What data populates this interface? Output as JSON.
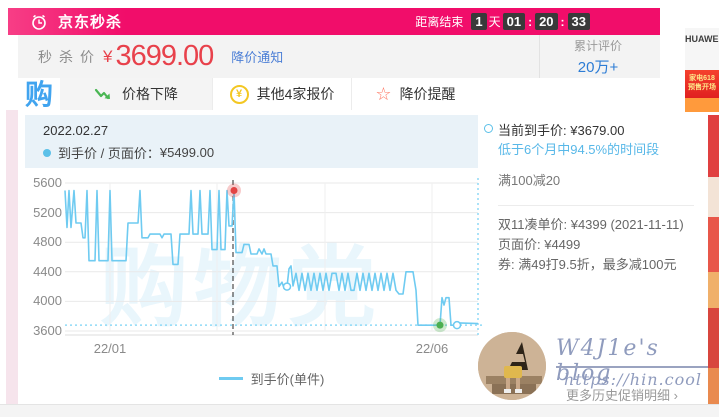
{
  "banner": {
    "title": "京东秒杀",
    "countdown_label": "距离结束",
    "days": "1",
    "day_unit": "天",
    "hours": "01",
    "minutes": "20",
    "seconds": "33",
    "colon": ":",
    "bg_color": "#f10d6a"
  },
  "price_bar": {
    "label": "秒杀价",
    "currency": "¥",
    "price": "3699.00",
    "notice_link": "降价通知",
    "review_label": "累计评价",
    "review_count": "20万+",
    "price_color": "#e8414b"
  },
  "side_product": {
    "brand": "HUAWEI",
    "promo_line1": "家电618",
    "promo_line2": "预售开场"
  },
  "toolbar": {
    "logo": "购",
    "tabs": [
      {
        "label": "价格下降",
        "icon": "trend-down-icon"
      },
      {
        "label": "其他4家报价",
        "icon": "yen-circle-icon",
        "yen": "¥"
      },
      {
        "label": "降价提醒",
        "icon": "star-icon",
        "star": "☆"
      }
    ]
  },
  "tooltip": {
    "date": "2022.02.27",
    "label": "到手价 / 页面价",
    "separator": "：",
    "value": "¥5499.00",
    "dot_color": "#5bc0e8"
  },
  "info_panel": {
    "current_label": "当前到手价:",
    "current_value": "¥3679.00",
    "hint": "低于6个月中94.5%的时间段",
    "hint_color": "#58b8e8",
    "promo": "满100减20",
    "double11": "双11凑单价: ¥4399 (2021-11-11)",
    "page_price": "页面价: ¥4499",
    "coupon": "券: 满49打9.5折，最多减100元"
  },
  "chart_data": {
    "type": "line",
    "title": "",
    "xlabel": "",
    "ylabel": "",
    "ylim": [
      3600,
      5650
    ],
    "grid": true,
    "legend_position": "bottom",
    "watermark": "购物党",
    "y_ticks": [
      5600,
      5200,
      4800,
      4400,
      4000,
      3600
    ],
    "x_ticks": [
      {
        "label": "22/01",
        "x": 110
      },
      {
        "label": "22/06",
        "x": 432
      }
    ],
    "x_gridlines": [
      110,
      217,
      325,
      432
    ],
    "current_price_line": 3679,
    "annotation_line_x": 233,
    "series": [
      {
        "name": "到手价(单件)",
        "color": "#6fcbf1",
        "points": [
          [
            65,
            5499
          ],
          [
            67,
            5000
          ],
          [
            69,
            5499
          ],
          [
            71,
            5000
          ],
          [
            74,
            5499
          ],
          [
            76,
            5060
          ],
          [
            81,
            5060
          ],
          [
            83,
            4860
          ],
          [
            85,
            4860
          ],
          [
            87,
            5499
          ],
          [
            89,
            4550
          ],
          [
            95,
            4550
          ],
          [
            97,
            5499
          ],
          [
            99,
            4550
          ],
          [
            108,
            4550
          ],
          [
            110,
            5499
          ],
          [
            112,
            4550
          ],
          [
            126,
            4550
          ],
          [
            128,
            5060
          ],
          [
            138,
            5060
          ],
          [
            140,
            5499
          ],
          [
            142,
            4860
          ],
          [
            148,
            4860
          ],
          [
            150,
            4910
          ],
          [
            160,
            4910
          ],
          [
            162,
            4860
          ],
          [
            164,
            4910
          ],
          [
            171,
            4910
          ],
          [
            173,
            4500
          ],
          [
            178,
            4500
          ],
          [
            180,
            4910
          ],
          [
            189,
            4910
          ],
          [
            191,
            5499
          ],
          [
            193,
            4910
          ],
          [
            198,
            4910
          ],
          [
            200,
            5499
          ],
          [
            202,
            4910
          ],
          [
            208,
            4910
          ],
          [
            210,
            5499
          ],
          [
            212,
            4700
          ],
          [
            217,
            4700
          ],
          [
            219,
            5499
          ],
          [
            221,
            4700
          ],
          [
            225,
            4700
          ],
          [
            227,
            5499
          ],
          [
            229,
            5020
          ],
          [
            232,
            5020
          ],
          [
            234,
            5499
          ],
          [
            236,
            4660
          ],
          [
            242,
            4660
          ],
          [
            244,
            4770
          ],
          [
            249,
            4770
          ],
          [
            251,
            4640
          ],
          [
            257,
            4640
          ],
          [
            259,
            4710
          ],
          [
            262,
            4640
          ],
          [
            264,
            4710
          ],
          [
            266,
            4640
          ],
          [
            271,
            4640
          ],
          [
            273,
            4480
          ],
          [
            277,
            4480
          ],
          [
            279,
            4200
          ],
          [
            282,
            4260
          ],
          [
            284,
            4180
          ],
          [
            287,
            4200
          ],
          [
            289,
            4440
          ],
          [
            291,
            4480
          ],
          [
            293,
            4210
          ],
          [
            296,
            4380
          ],
          [
            299,
            4150
          ],
          [
            302,
            4380
          ],
          [
            305,
            4150
          ],
          [
            308,
            4380
          ],
          [
            311,
            4150
          ],
          [
            314,
            4380
          ],
          [
            317,
            4150
          ],
          [
            320,
            4380
          ],
          [
            323,
            4150
          ],
          [
            326,
            4380
          ],
          [
            329,
            4150
          ],
          [
            332,
            4380
          ],
          [
            336,
            4380
          ],
          [
            339,
            4150
          ],
          [
            342,
            4380
          ],
          [
            345,
            4150
          ],
          [
            348,
            4380
          ],
          [
            351,
            4150
          ],
          [
            354,
            4150
          ],
          [
            357,
            4380
          ],
          [
            360,
            4150
          ],
          [
            363,
            4380
          ],
          [
            366,
            4150
          ],
          [
            369,
            4380
          ],
          [
            372,
            4150
          ],
          [
            375,
            4380
          ],
          [
            378,
            4150
          ],
          [
            381,
            4380
          ],
          [
            384,
            4150
          ],
          [
            387,
            4380
          ],
          [
            390,
            4150
          ],
          [
            393,
            4380
          ],
          [
            396,
            4150
          ],
          [
            399,
            4100
          ],
          [
            403,
            4100
          ],
          [
            406,
            4400
          ],
          [
            413,
            4400
          ],
          [
            416,
            4150
          ],
          [
            418,
            3679
          ],
          [
            438,
            3679
          ],
          [
            440,
            3679
          ],
          [
            442,
            4050
          ],
          [
            444,
            3950
          ],
          [
            446,
            4050
          ],
          [
            449,
            4050
          ],
          [
            451,
            3679
          ],
          [
            456,
            3679
          ],
          [
            459,
            3710
          ],
          [
            478,
            3700
          ]
        ]
      }
    ],
    "markers": [
      {
        "type": "dot-red",
        "x": 234,
        "price": 5499,
        "date": "2022.02.27"
      },
      {
        "type": "circle",
        "x": 287,
        "price": 4200
      },
      {
        "type": "dot-green",
        "x": 440,
        "price": 3679
      },
      {
        "type": "circle",
        "x": 457,
        "price": 3679
      }
    ]
  },
  "footer": {
    "more_link": "更多历史促销明细 ›",
    "blog_name": "W4J1e's blog",
    "blog_url": "https://hin.cool"
  }
}
